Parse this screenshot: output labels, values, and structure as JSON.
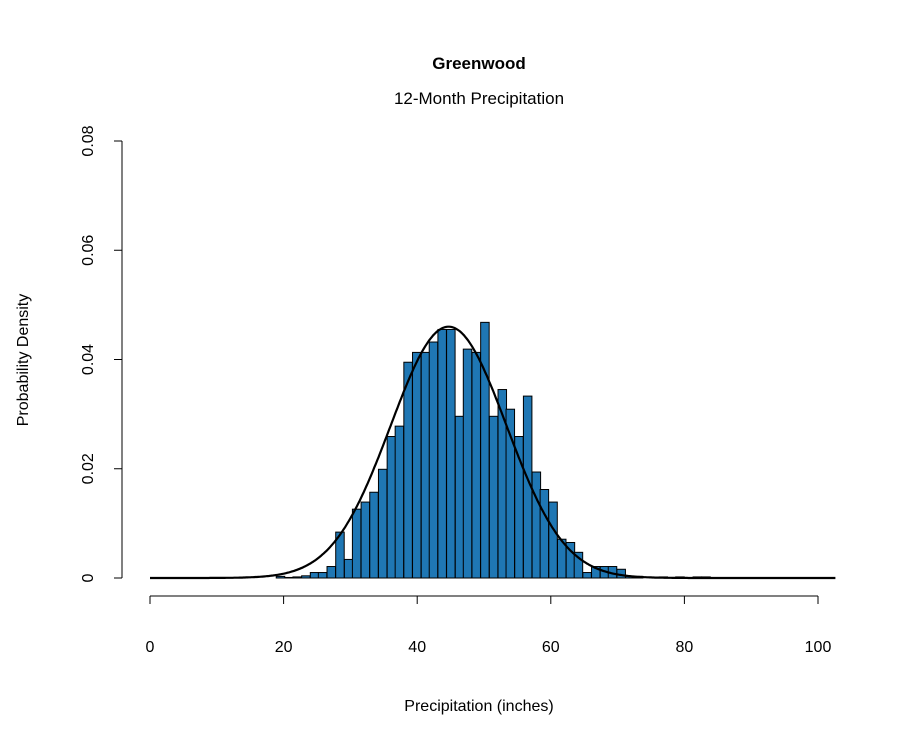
{
  "chart_data": {
    "type": "bar",
    "title": "Greenwood",
    "subtitle": "12-Month Precipitation",
    "xlabel": "Precipitation (inches)",
    "ylabel": "Probability Density",
    "xlim": [
      0,
      100
    ],
    "ylim": [
      0,
      0.08
    ],
    "xticks": [
      0,
      20,
      40,
      60,
      80,
      100
    ],
    "yticks": [
      0,
      0.02,
      0.04,
      0.06,
      0.08
    ],
    "xtick_labels": [
      "0",
      "20",
      "40",
      "60",
      "80",
      "100"
    ],
    "ytick_labels": [
      "0",
      "0.02",
      "0.04",
      "0.06",
      "0.08"
    ],
    "grid": false,
    "bar_color": "#1f77b4",
    "bin_width": 1.273,
    "bins_start": [
      18.9,
      20.2,
      21.4,
      22.7,
      24.0,
      25.2,
      26.5,
      27.8,
      29.1,
      30.3,
      31.6,
      32.9,
      34.2,
      35.5,
      36.7,
      38.0,
      39.3,
      40.6,
      41.8,
      43.1,
      44.4,
      45.7,
      46.9,
      48.2,
      49.5,
      50.8,
      52.1,
      53.3,
      54.6,
      55.9,
      57.2,
      58.4,
      59.7,
      61.0,
      62.3,
      63.5,
      64.8,
      66.1,
      67.4,
      68.6,
      69.9,
      71.2,
      72.5,
      73.7,
      74.9,
      76.2,
      77.5,
      78.7,
      80.0,
      81.3,
      82.6
    ],
    "density": [
      0.0003,
      0.0001,
      0.0002,
      0.0004,
      0.001,
      0.001,
      0.0021,
      0.0084,
      0.0034,
      0.0126,
      0.0139,
      0.0157,
      0.0199,
      0.0259,
      0.0278,
      0.0395,
      0.0413,
      0.0413,
      0.0432,
      0.0455,
      0.0455,
      0.0296,
      0.0419,
      0.0413,
      0.0468,
      0.0296,
      0.0345,
      0.0309,
      0.0259,
      0.0333,
      0.0194,
      0.0162,
      0.0139,
      0.0071,
      0.0065,
      0.0047,
      0.001,
      0.0021,
      0.0021,
      0.0021,
      0.0016,
      0.0003,
      0.0003,
      0,
      0,
      0.0002,
      0,
      0.0002,
      0,
      0.0002,
      0.0002
    ],
    "fit_curve": {
      "type": "normal",
      "mean": 44.7,
      "sd": 8.67,
      "x_range": [
        0,
        102.7
      ],
      "color": "#000000"
    }
  }
}
